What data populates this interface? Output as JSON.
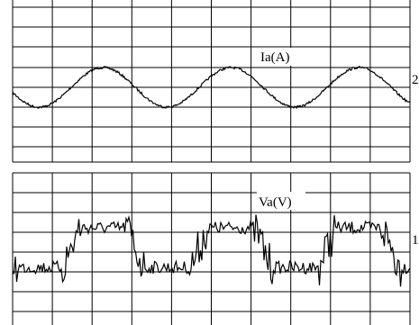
{
  "panels": [
    {
      "label": "Ia(A)",
      "channel": "2"
    },
    {
      "label": "Va(V)",
      "channel": "1"
    }
  ]
}
